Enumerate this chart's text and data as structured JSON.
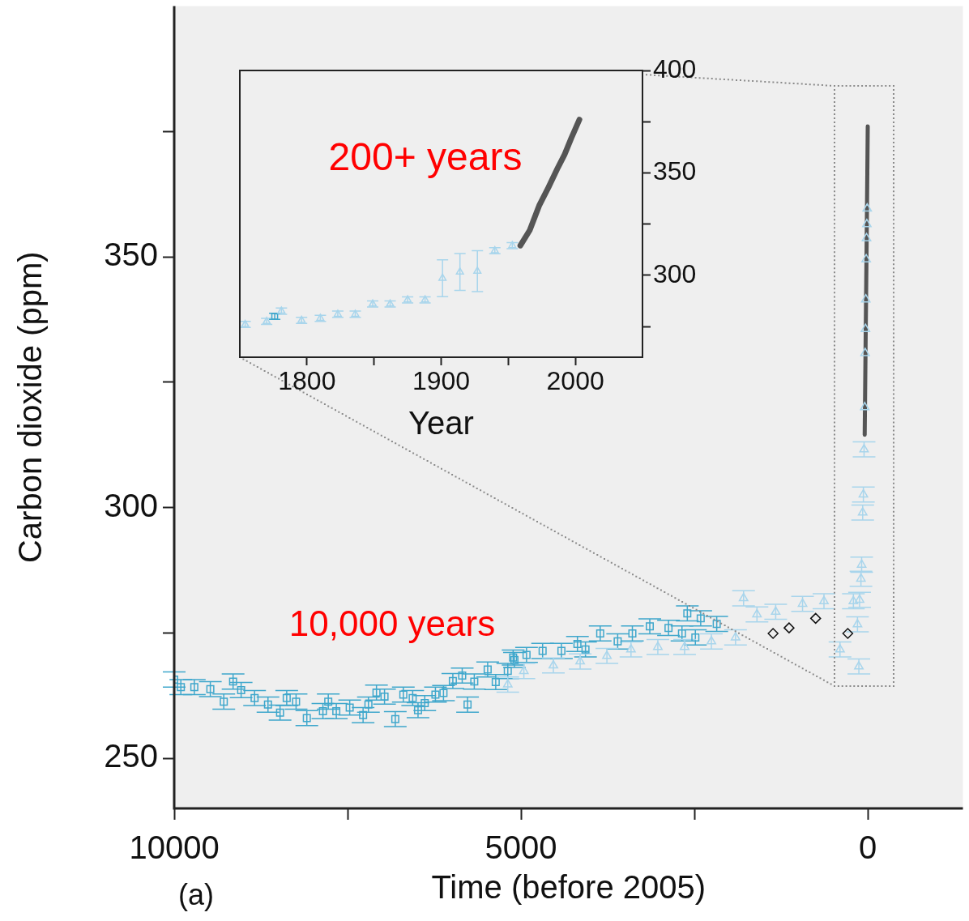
{
  "chart_data": [
    {
      "type": "scatter",
      "xlabel": "Time (before 2005)",
      "ylabel": "Carbon dioxide (ppm)",
      "xlim": [
        10000,
        -1370
      ],
      "xticks": [
        10000,
        {
          "value": 7500,
          "label": null
        },
        5000,
        {
          "value": 2500,
          "label": null
        },
        0
      ],
      "ylim": [
        240,
        400
      ],
      "yticks": [
        250,
        {
          "value": 275,
          "label": null
        },
        300,
        {
          "value": 325,
          "label": null
        },
        350,
        {
          "value": 375,
          "label": null
        }
      ],
      "annotations": [
        "10,000 years",
        "(a)"
      ],
      "series": [
        {
          "type": "scatter",
          "marker": "square",
          "color": "#3fa7cc",
          "x": [
            10000,
            9904,
            9710,
            9479,
            9285,
            9151,
            9035,
            8841,
            8648,
            8474,
            8378,
            8243,
            8088,
            7856,
            7779,
            7663,
            7470,
            7277,
            7200,
            7084,
            6968,
            6813,
            6697,
            6562,
            6485,
            6388,
            6234,
            6118,
            5983,
            5848,
            5771,
            5674,
            5481,
            5365,
            5191,
            5095,
            5114,
            4921,
            4689,
            4418,
            4187,
            4071,
            3859,
            3607,
            3395,
            3144,
            2874,
            2680,
            2487,
            2603,
            2410,
            2179
          ],
          "values": [
            265.7,
            264.2,
            264.2,
            263.8,
            261.3,
            265.3,
            263.6,
            262,
            260.7,
            259.1,
            262,
            261.3,
            258,
            259.4,
            261.3,
            259.4,
            260.1,
            258.6,
            260.7,
            263.1,
            262.3,
            257.8,
            262.7,
            262,
            259.6,
            261,
            262.7,
            263,
            265.4,
            266.5,
            260.7,
            265.3,
            267.7,
            265.2,
            267.4,
            269.6,
            270.1,
            270.6,
            271.4,
            271.4,
            272.8,
            271.7,
            274.9,
            273.3,
            274.9,
            276.3,
            276,
            274.9,
            274.1,
            278.9,
            277.9,
            276.8
          ],
          "errors": [
            1.5,
            1.5,
            1.5,
            1.5,
            1.5,
            1.5,
            1.5,
            1.5,
            1.5,
            1.5,
            1.5,
            1.5,
            1.5,
            1.5,
            1.5,
            1.5,
            1.5,
            1.5,
            1.5,
            1.5,
            1.5,
            1.5,
            1.5,
            1.5,
            1.5,
            1.5,
            1.5,
            1.5,
            1.5,
            1.5,
            1.5,
            1.5,
            1.5,
            1.5,
            1.5,
            1.5,
            1.5,
            1.5,
            1.5,
            1.5,
            1.5,
            1.5,
            1.5,
            1.5,
            1.5,
            1.5,
            1.5,
            1.5,
            1.5,
            1.5,
            1.5,
            1.5
          ]
        },
        {
          "type": "scatter",
          "marker": "triangle",
          "color": "#a8d5ec",
          "x": [
            5191,
            4959,
            4534,
            4148,
            3762,
            3415,
            3028,
            2642,
            2256,
            1908,
            1792,
            1599,
            1329,
            942,
            633,
            402,
            209,
            150,
            130,
            120,
            100,
            90,
            75,
            65,
            55,
            45,
            40,
            35,
            30,
            25,
            20,
            15,
            10
          ],
          "values": [
            264.7,
            267.4,
            268.5,
            269.3,
            270.4,
            271.7,
            272.2,
            272.2,
            273.3,
            274.1,
            281.9,
            278.7,
            279.2,
            280.8,
            281.3,
            271.7,
            281.3,
            276.7,
            268.3,
            281.6,
            285.8,
            288.6,
            299,
            302.6,
            311.6,
            320,
            330.8,
            335.6,
            341.5,
            349.5,
            353.7,
            356.5,
            359.6
          ],
          "errors": [
            1.5,
            1.5,
            1.5,
            1.5,
            1.5,
            1.5,
            1.5,
            1.5,
            1.5,
            1.5,
            1.5,
            1.5,
            1.5,
            1.5,
            1.5,
            1.5,
            1.5,
            1.5,
            1.5,
            1.5,
            1.5,
            1.5,
            1.5,
            1.5,
            1.5,
            null,
            null,
            null,
            null,
            null,
            null,
            null,
            null
          ]
        },
        {
          "type": "scatter",
          "marker": "diamond",
          "color": "#111111",
          "x": [
            1367,
            1136,
            753,
            290
          ],
          "values": [
            274.9,
            276,
            277.9,
            274.9
          ]
        },
        {
          "type": "line",
          "marker": "none",
          "color": "#555555",
          "x": [
            46,
            32,
            18,
            8,
            2
          ],
          "values": [
            314.5,
            334,
            352.6,
            367,
            376
          ]
        }
      ]
    },
    {
      "type": "scatter",
      "xlabel": "Year",
      "xlim": [
        1750,
        2050
      ],
      "xticks": [
        1800,
        {
          "value": 1850,
          "label": null
        },
        1900,
        {
          "value": 1950,
          "label": null
        },
        2000
      ],
      "ylim": [
        260,
        400
      ],
      "yticks": [
        {
          "value": 275,
          "label": null
        },
        300,
        {
          "value": 325,
          "label": null
        },
        350,
        {
          "value": 375,
          "label": null
        },
        400
      ],
      "annotations": [
        "200+ years"
      ],
      "series": [
        {
          "type": "scatter",
          "marker": "triangle",
          "color": "#a8d5ec",
          "x": [
            1754,
            1770,
            1781,
            1796,
            1810,
            1823,
            1836,
            1849,
            1862,
            1875,
            1888,
            1901,
            1914,
            1927,
            1940,
            1953
          ],
          "values": [
            276,
            277.5,
            282.5,
            278,
            279,
            281,
            281,
            286,
            286,
            288,
            288,
            298.6,
            301.6,
            302,
            312,
            314.5
          ],
          "errors": [
            1.5,
            1.5,
            1.5,
            1.5,
            1.5,
            1.5,
            1.5,
            1.5,
            1.5,
            1.5,
            1.5,
            9,
            9,
            10,
            1.5,
            1.5
          ]
        },
        {
          "type": "scatter",
          "marker": "square",
          "color": "#3fa7cc",
          "x": [
            1776
          ],
          "values": [
            280
          ],
          "errors": [
            1.5
          ]
        },
        {
          "type": "line",
          "marker": "none",
          "color": "#555555",
          "x": [
            1959,
            1966,
            1973,
            1980,
            1987,
            1992,
            1997,
            2003
          ],
          "values": [
            314.5,
            322,
            334,
            343,
            352.6,
            359,
            367,
            376
          ]
        }
      ]
    }
  ]
}
